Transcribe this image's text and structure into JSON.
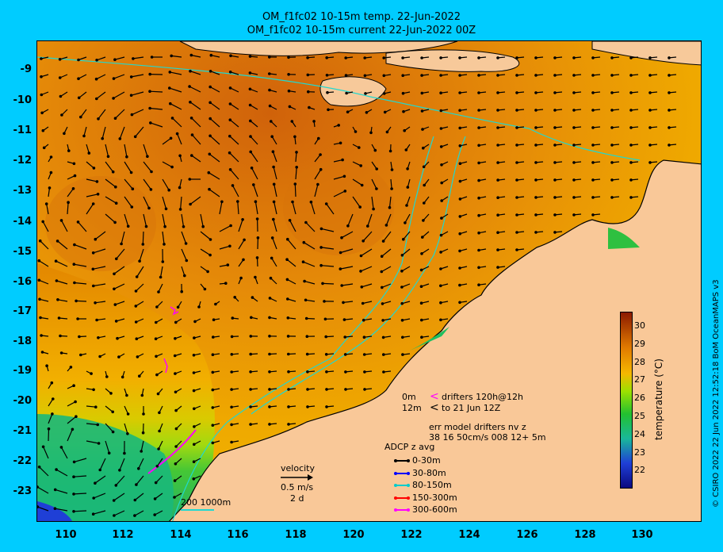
{
  "title": {
    "line1": "OM_f1fc02 10-15m temp. 22-Jun-2022",
    "line2": "OM_f1fc02 10-15m current 22-Jun-2022 00Z"
  },
  "axes": {
    "y_ticks": [
      "-9",
      "-10",
      "-11",
      "-12",
      "-13",
      "-14",
      "-15",
      "-16",
      "-17",
      "-18",
      "-19",
      "-20",
      "-21",
      "-22",
      "-23"
    ],
    "x_ticks": [
      "110",
      "112",
      "114",
      "116",
      "118",
      "120",
      "122",
      "124",
      "126",
      "128",
      "130"
    ]
  },
  "colorbar": {
    "label": "temperature (°C)",
    "ticks": [
      "30",
      "29",
      "28",
      "27",
      "26",
      "25",
      "24",
      "23",
      "22"
    ],
    "colors": {
      "hot": "#8b1a00",
      "warm": "#e07a00",
      "mid": "#f5b800",
      "cool": "#9ce000",
      "green": "#22c030",
      "teal": "#19b89a",
      "blue": "#1f3fd6",
      "navy": "#0a0a80"
    }
  },
  "scale": {
    "label": "200  1000m"
  },
  "velocity_legend": {
    "title": "velocity",
    "speed": "0.5 m/s",
    "duration": "2 d"
  },
  "drifters": {
    "line1_a": "0m",
    "line1_b": "drifters 120h@12h",
    "line2_a": "12m",
    "line2_b": "to 21 Jun 12Z",
    "line3": "err model drifters nv z",
    "line4": "38 16 50cm/s 008 12+ 5m"
  },
  "adcp": {
    "title": "ADCP z avg",
    "items": [
      {
        "label": "0-30m",
        "color": "#000000"
      },
      {
        "label": "30-80m",
        "color": "#0000ff"
      },
      {
        "label": "80-150m",
        "color": "#00cccc"
      },
      {
        "label": "150-300m",
        "color": "#ff0000"
      },
      {
        "label": "300-600m",
        "color": "#ff00ff"
      }
    ]
  },
  "credit": "© CSIRO 2022   22 Jun 2022 12:52:18 BoM OceanMAPS v3"
}
